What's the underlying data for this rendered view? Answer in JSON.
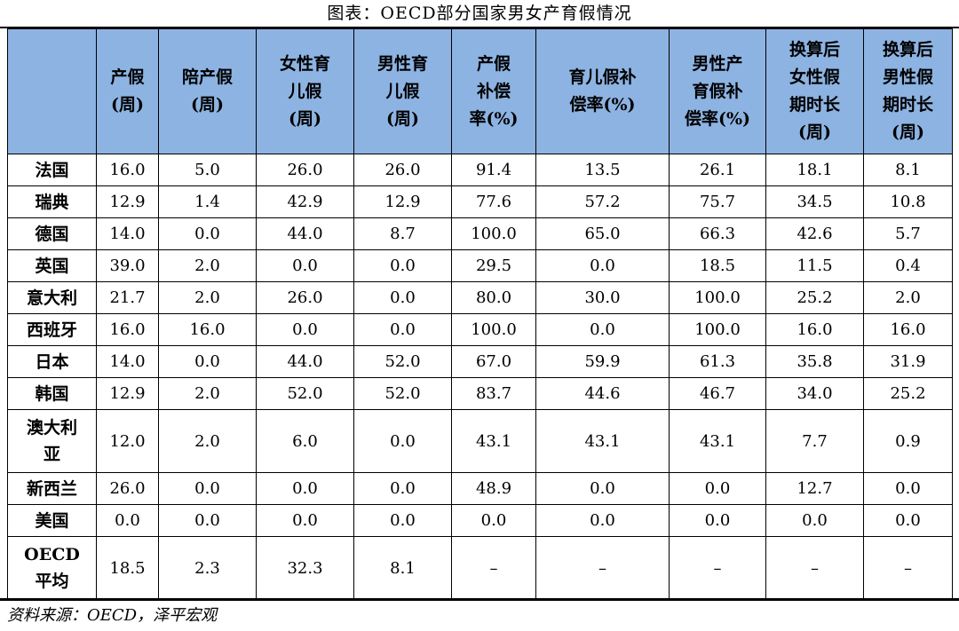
{
  "caption": "图表：OECD部分国家男女产育假情况",
  "headers": [
    [
      ""
    ],
    [
      "产假",
      "(周)"
    ],
    [
      "陪产假",
      "(周)"
    ],
    [
      "女性育",
      "儿假",
      "(周)"
    ],
    [
      "男性育",
      "儿假",
      "(周)"
    ],
    [
      "产假",
      "补偿",
      "率(%)"
    ],
    [
      "育儿假补",
      "偿率(%)"
    ],
    [
      "男性产",
      "育假补",
      "偿率(%)"
    ],
    [
      "换算后",
      "女性假",
      "期时长",
      "(周)"
    ],
    [
      "换算后",
      "男性假",
      "期时长",
      "(周)"
    ]
  ],
  "rows": [
    {
      "country": [
        "法国"
      ],
      "values": [
        "16.0",
        "5.0",
        "26.0",
        "26.0",
        "91.4",
        "13.5",
        "26.1",
        "18.1",
        "8.1"
      ]
    },
    {
      "country": [
        "瑞典"
      ],
      "values": [
        "12.9",
        "1.4",
        "42.9",
        "12.9",
        "77.6",
        "57.2",
        "75.7",
        "34.5",
        "10.8"
      ]
    },
    {
      "country": [
        "德国"
      ],
      "values": [
        "14.0",
        "0.0",
        "44.0",
        "8.7",
        "100.0",
        "65.0",
        "66.3",
        "42.6",
        "5.7"
      ]
    },
    {
      "country": [
        "英国"
      ],
      "values": [
        "39.0",
        "2.0",
        "0.0",
        "0.0",
        "29.5",
        "0.0",
        "18.5",
        "11.5",
        "0.4"
      ]
    },
    {
      "country": [
        "意大利"
      ],
      "values": [
        "21.7",
        "2.0",
        "26.0",
        "0.0",
        "80.0",
        "30.0",
        "100.0",
        "25.2",
        "2.0"
      ]
    },
    {
      "country": [
        "西班牙"
      ],
      "values": [
        "16.0",
        "16.0",
        "0.0",
        "0.0",
        "100.0",
        "0.0",
        "100.0",
        "16.0",
        "16.0"
      ]
    },
    {
      "country": [
        "日本"
      ],
      "values": [
        "14.0",
        "0.0",
        "44.0",
        "52.0",
        "67.0",
        "59.9",
        "61.3",
        "35.8",
        "31.9"
      ]
    },
    {
      "country": [
        "韩国"
      ],
      "values": [
        "12.9",
        "2.0",
        "52.0",
        "52.0",
        "83.7",
        "44.6",
        "46.7",
        "34.0",
        "25.2"
      ]
    },
    {
      "country": [
        "澳大利",
        "亚"
      ],
      "values": [
        "12.0",
        "2.0",
        "6.0",
        "0.0",
        "43.1",
        "43.1",
        "43.1",
        "7.7",
        "0.9"
      ]
    },
    {
      "country": [
        "新西兰"
      ],
      "values": [
        "26.0",
        "0.0",
        "0.0",
        "0.0",
        "48.9",
        "0.0",
        "0.0",
        "12.7",
        "0.0"
      ]
    },
    {
      "country": [
        "美国"
      ],
      "values": [
        "0.0",
        "0.0",
        "0.0",
        "0.0",
        "0.0",
        "0.0",
        "0.0",
        "0.0",
        "0.0"
      ]
    },
    {
      "country": [
        "OECD",
        "平均"
      ],
      "values": [
        "18.5",
        "2.3",
        "32.3",
        "8.1",
        "–",
        "–",
        "–",
        "–",
        "–"
      ]
    }
  ],
  "source": "资料来源：OECD，泽平宏观"
}
